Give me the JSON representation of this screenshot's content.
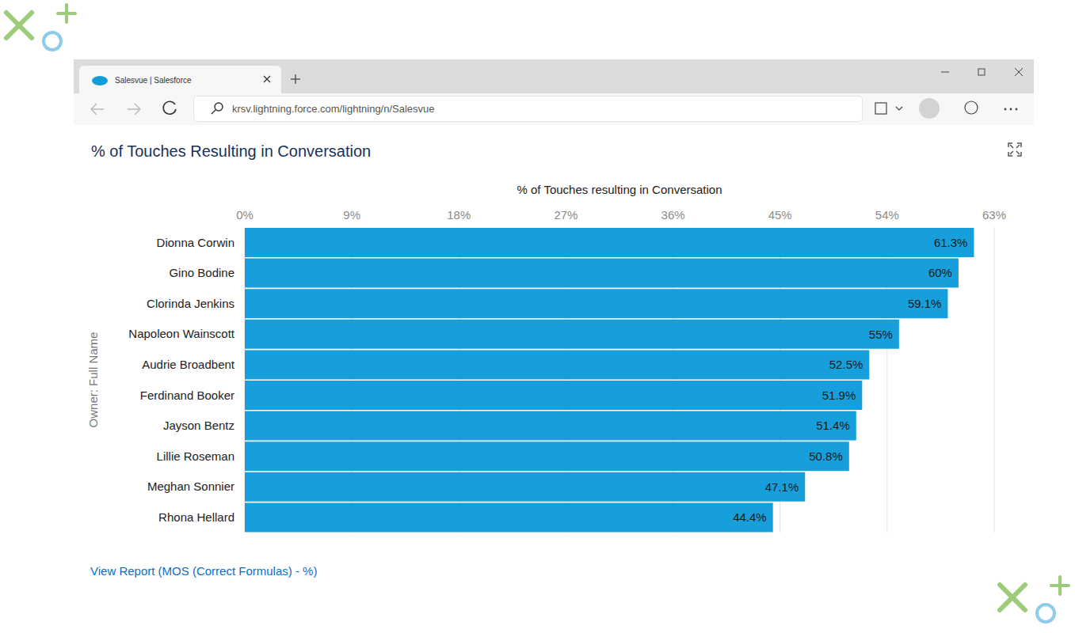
{
  "browser": {
    "tab_title": "Salesvue | Salesforce",
    "url": "krsv.lightning.force.com/lightning/n/Salesvue"
  },
  "chart_data": {
    "type": "bar",
    "orientation": "horizontal",
    "title": "% of Touches Resulting in Conversation",
    "xlabel": "% of Touches resulting in Conversation",
    "ylabel": "Owner: Full Name",
    "categories": [
      "Dionna Corwin",
      "Gino Bodine",
      "Clorinda Jenkins",
      "Napoleon Wainscott",
      "Audrie Broadbent",
      "Ferdinand Booker",
      "Jayson Bentz",
      "Lillie Roseman",
      "Meghan Sonnier",
      "Rhona Hellard"
    ],
    "values": [
      61.3,
      60,
      59.1,
      55,
      52.5,
      51.9,
      51.4,
      50.8,
      47.1,
      44.4
    ],
    "value_labels": [
      "61.3%",
      "60%",
      "59.1%",
      "55%",
      "52.5%",
      "51.9%",
      "51.4%",
      "50.8%",
      "47.1%",
      "44.4%"
    ],
    "color": "#169fdb",
    "xlim": [
      0,
      63
    ],
    "xticks": [
      {
        "value": 0,
        "label": "0%"
      },
      {
        "value": 9,
        "label": "9%"
      },
      {
        "value": 18,
        "label": "18%"
      },
      {
        "value": 27,
        "label": "27%"
      },
      {
        "value": 36,
        "label": "36%"
      },
      {
        "value": 45,
        "label": "45%"
      },
      {
        "value": 54,
        "label": "54%"
      },
      {
        "value": 63,
        "label": "63%"
      }
    ],
    "grid": true,
    "data_labels": true
  },
  "link": "View Report (MOS (Correct Formulas) - %)"
}
